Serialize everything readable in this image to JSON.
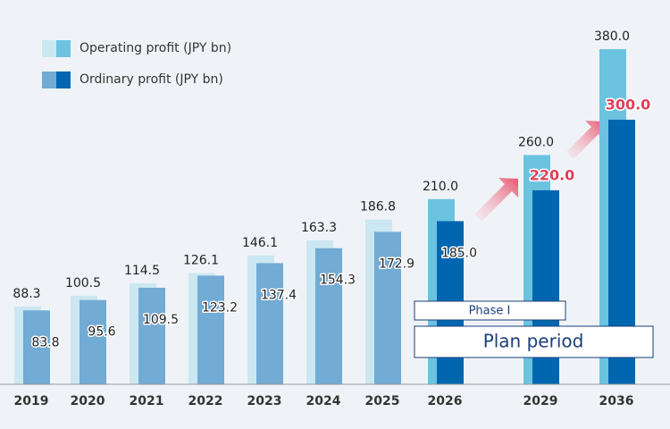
{
  "chart_data": {
    "type": "bar",
    "categories": [
      "2019",
      "2020",
      "2021",
      "2022",
      "2023",
      "2024",
      "2025",
      "2026",
      "2029",
      "2036"
    ],
    "series": [
      {
        "name": "Operating profit (JPY bn)",
        "values": [
          88.3,
          100.5,
          114.5,
          126.1,
          146.1,
          163.3,
          186.8,
          210.0,
          260.0,
          380.0
        ],
        "value_labels": [
          "88.3",
          "100.5",
          "114.5",
          "126.1",
          "146.1",
          "163.3",
          "186.8",
          "210.0",
          "260.0",
          "380.0"
        ],
        "colors": [
          "#cbe7f1",
          "#cbe7f1",
          "#cbe7f1",
          "#cbe7f1",
          "#cbe7f1",
          "#cbe7f1",
          "#cbe7f1",
          "#6cc3df",
          "#6cc3df",
          "#6cc3df"
        ],
        "label_colors": [
          "#222222",
          "#222222",
          "#222222",
          "#222222",
          "#222222",
          "#222222",
          "#222222",
          "#222222",
          "#222222",
          "#222222"
        ]
      },
      {
        "name": "Ordinary profit (JPY bn)",
        "values": [
          83.8,
          95.6,
          109.5,
          123.2,
          137.4,
          154.3,
          172.9,
          185.0,
          220.0,
          300.0
        ],
        "value_labels": [
          "83.8",
          "95.6",
          "109.5",
          "123.2",
          "137.4",
          "154.3",
          "172.9",
          "185.0",
          "220.0",
          "300.0"
        ],
        "colors": [
          "#72abd4",
          "#72abd4",
          "#72abd4",
          "#72abd4",
          "#72abd4",
          "#72abd4",
          "#72abd4",
          "#0066b0",
          "#0066b0",
          "#0066b0"
        ],
        "label_colors": [
          "#222222",
          "#222222",
          "#222222",
          "#222222",
          "#222222",
          "#222222",
          "#222222",
          "#222222",
          "#e0405a",
          "#e0405a"
        ]
      }
    ],
    "annotations": [
      "Phase I",
      "Plan period"
    ]
  }
}
